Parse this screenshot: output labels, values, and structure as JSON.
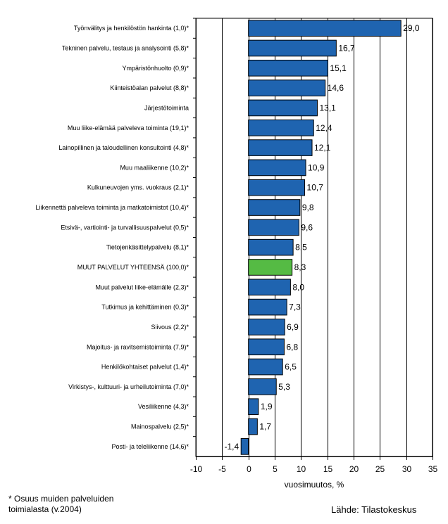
{
  "chart_data": {
    "type": "bar",
    "orientation": "horizontal",
    "title": "",
    "xlabel": "vuosimuutos, %",
    "ylabel": "",
    "xlim": [
      -10,
      35
    ],
    "xticks": [
      -10,
      -5,
      0,
      5,
      10,
      15,
      20,
      25,
      30,
      35
    ],
    "xtick_labels": [
      "-10",
      "-5",
      "0",
      "5",
      "10",
      "15",
      "20",
      "25",
      "30",
      "35"
    ],
    "grid": "vertical at major ticks",
    "colors": {
      "default": "#1F64B0",
      "highlight": "#55BB44",
      "outline": "#000000"
    },
    "categories": [
      "Työnvälitys ja henkilöstön hankinta (1,0)*",
      "Tekninen palvelu, testaus ja analysointi (5,8)*",
      "Ympäristönhuolto (0,9)*",
      "Kiinteistöalan palvelut (8,8)*",
      "Järjestötoiminta",
      "Muu liike-elämää palveleva toiminta (19,1)*",
      "Lainopillinen ja taloudellinen konsultointi (4,8)*",
      "Muu maaliikenne (10,2)*",
      "Kulkuneuvojen yms. vuokraus (2,1)*",
      "Liikennettä palveleva toiminta ja matkatoimistot (10,4)*",
      "Etsivä-, vartiointi- ja turvallisuuspalvelut (0,5)*",
      "Tietojenkäsittelypalvelu (8,1)*",
      "MUUT PALVELUT YHTEENSÄ (100,0)*",
      "Muut palvelut liike-elämälle (2,3)*",
      "Tutkimus ja kehittäminen (0,3)*",
      "Siivous (2,2)*",
      "Majoitus- ja ravitsemistoiminta (7,9)*",
      "Henkilökohtaiset palvelut (1,4)*",
      "Virkistys-, kulttuuri- ja urheilutoiminta (7,0)*",
      "Vesiliikenne (4,3)*",
      "Mainospalvelu (2,5)*",
      "Posti- ja teleliikenne (14,6)*"
    ],
    "values": [
      29.0,
      16.7,
      15.1,
      14.6,
      13.1,
      12.4,
      12.1,
      10.9,
      10.7,
      9.8,
      9.6,
      8.5,
      8.3,
      8.0,
      7.3,
      6.9,
      6.8,
      6.5,
      5.3,
      1.9,
      1.7,
      -1.4
    ],
    "value_labels": [
      "29,0",
      "16,7",
      "15,1",
      "14,6",
      "13,1",
      "12,4",
      "12,1",
      "10,9",
      "10,7",
      "9,8",
      "9,6",
      "8,5",
      "8,3",
      "8,0",
      "7,3",
      "6,9",
      "6,8",
      "6,5",
      "5,3",
      "1,9",
      "1,7",
      "-1,4"
    ],
    "highlight_index": 12
  },
  "footnote": {
    "line1": "* Osuus muiden palveluiden",
    "line2": "toimialasta (v.2004)"
  },
  "source": "Lähde: Tilastokeskus"
}
